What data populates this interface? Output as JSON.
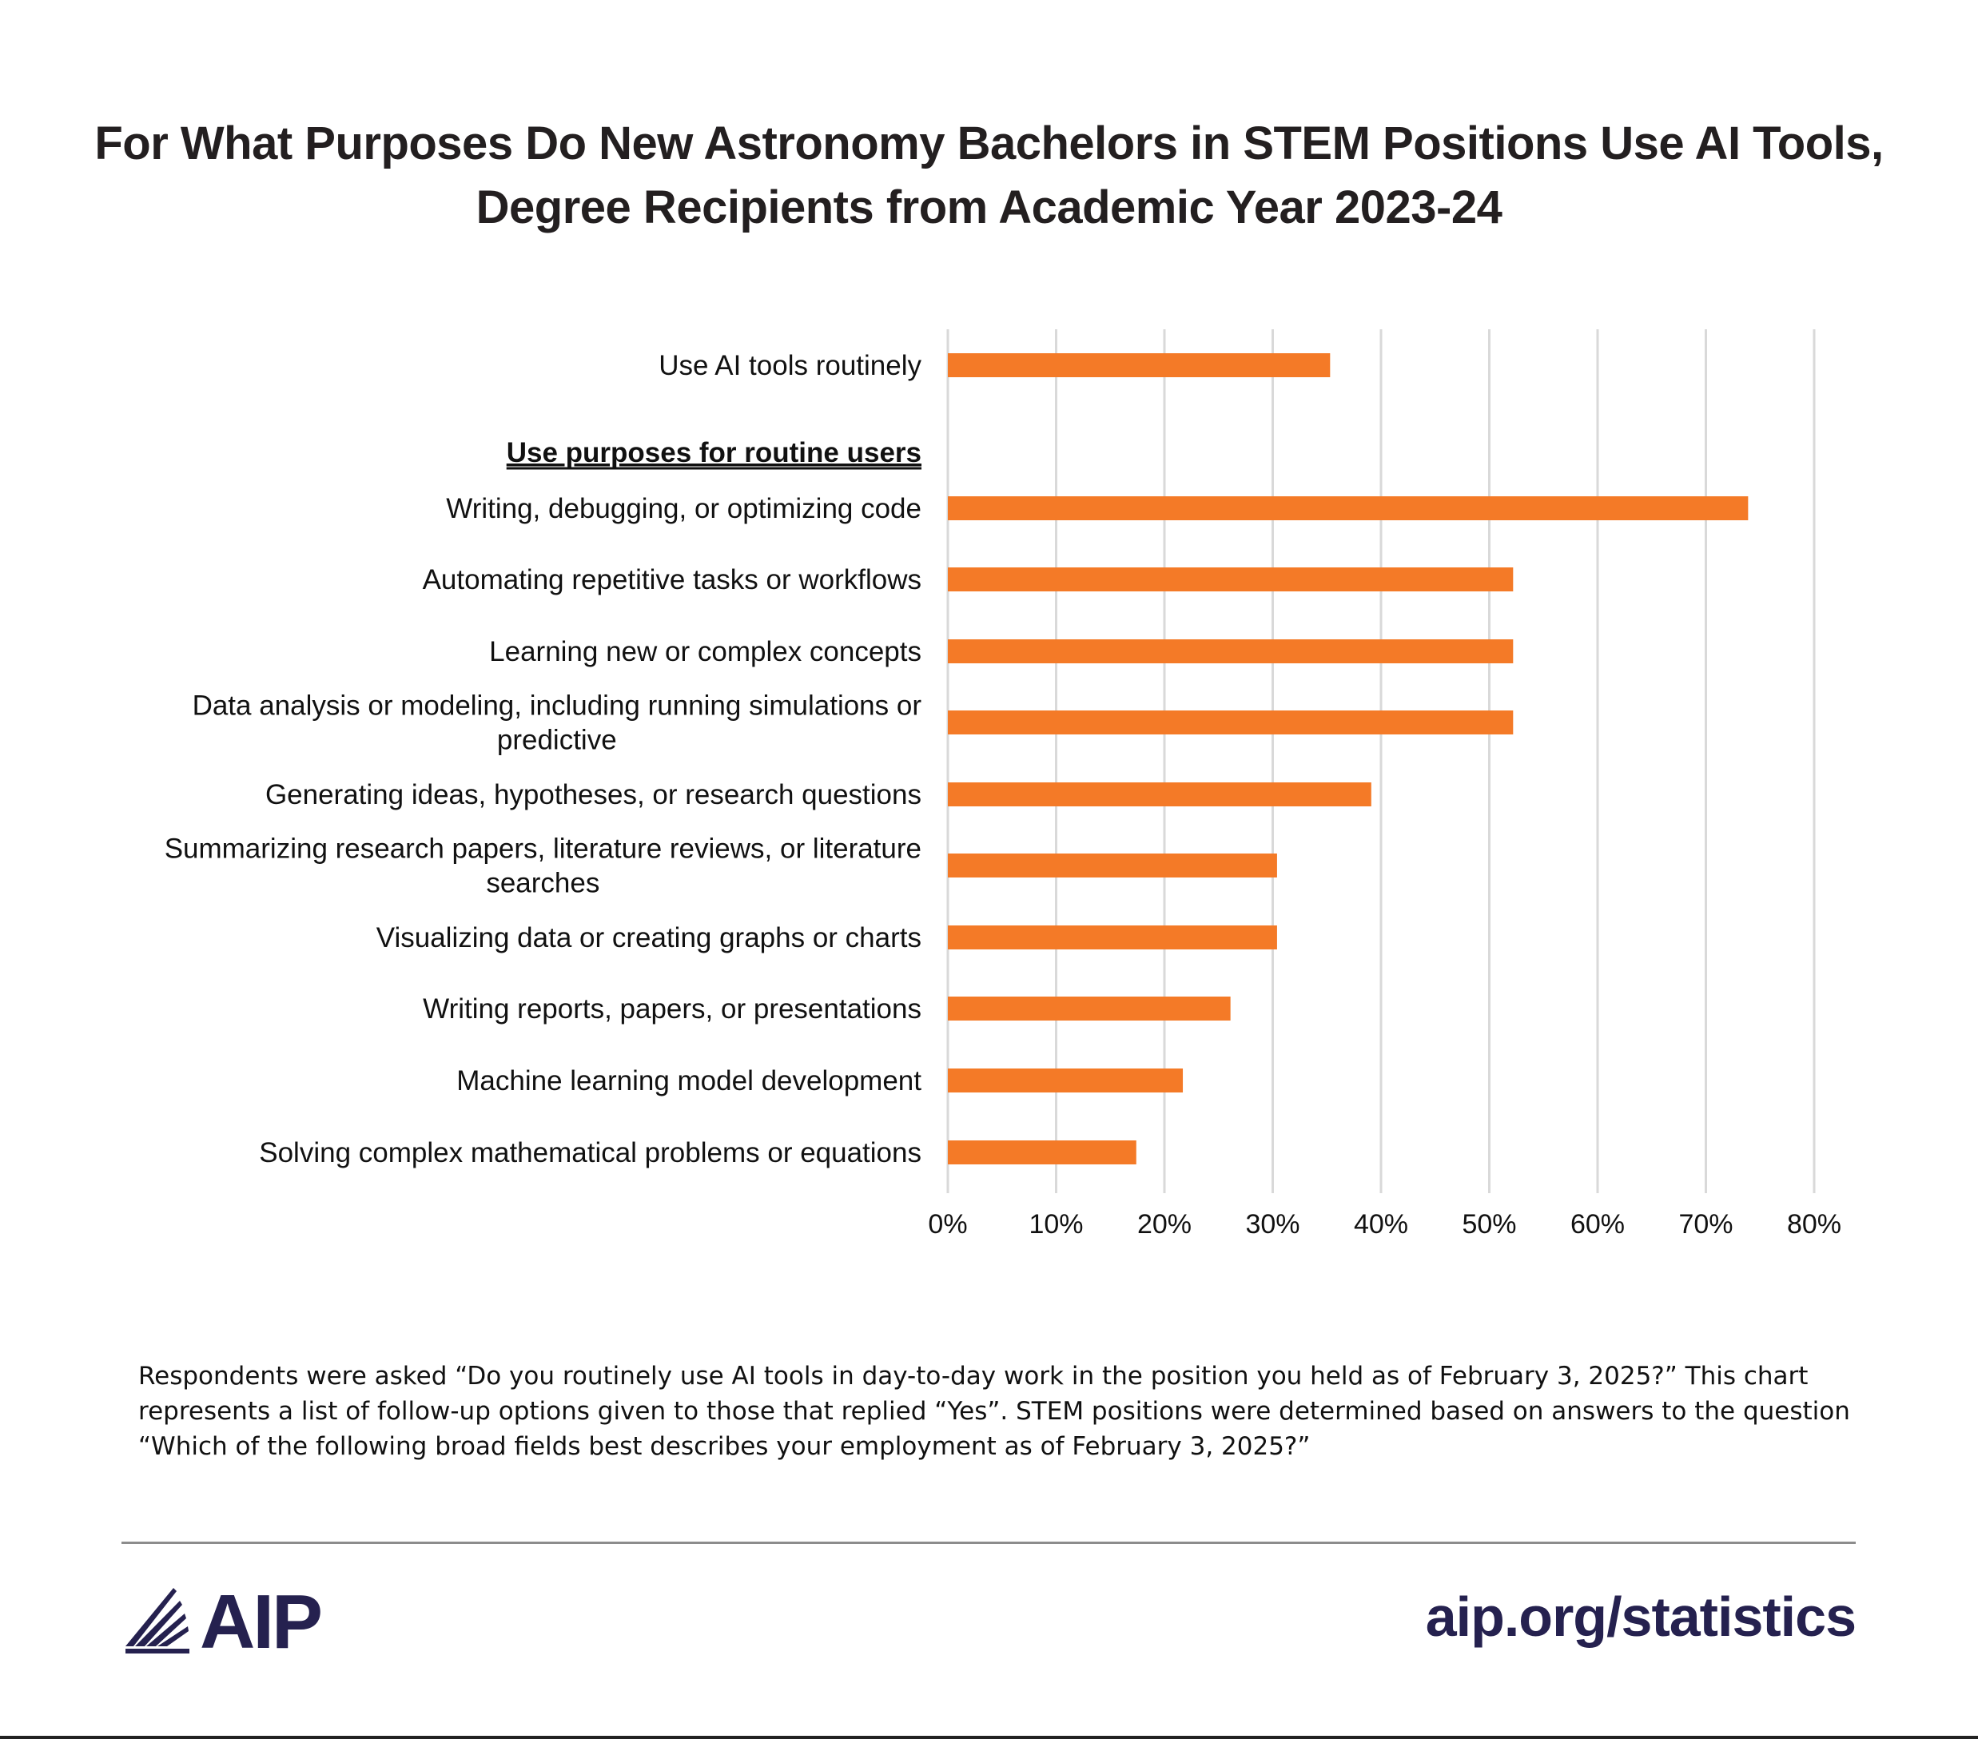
{
  "title_lines": [
    "For What Purposes Do New Astronomy Bachelors in STEM Positions Use AI Tools,",
    "Degree Recipients from Academic Year 2023-24"
  ],
  "chart_data": {
    "type": "bar",
    "orientation": "horizontal",
    "title": "For What Purposes Do New Astronomy Bachelors in STEM Positions Use AI Tools, Degree Recipients from Academic Year 2023-24",
    "section_heading": "Use purposes for routine users",
    "categories": [
      "Use AI tools routinely",
      "Writing, debugging, or optimizing code",
      "Automating repetitive tasks or workflows",
      "Learning new or complex concepts",
      "Data analysis or modeling, including running simulations or predictive",
      "Generating ideas, hypotheses, or research questions",
      "Summarizing research papers, literature reviews, or literature searches",
      "Visualizing data or creating graphs or charts",
      "Writing reports, papers, or presentations",
      "Machine learning model development",
      "Solving complex mathematical problems or equations"
    ],
    "category_label_lines": [
      [
        "Use AI tools routinely"
      ],
      [
        "Writing, debugging, or optimizing code"
      ],
      [
        "Automating repetitive tasks or workflows"
      ],
      [
        "Learning new or complex concepts"
      ],
      [
        "Data analysis or modeling, including running simulations or",
        "predictive"
      ],
      [
        "Generating ideas, hypotheses, or research questions"
      ],
      [
        "Summarizing research papers, literature reviews, or literature",
        "searches"
      ],
      [
        "Visualizing data or creating graphs or charts"
      ],
      [
        "Writing reports, papers, or presentations"
      ],
      [
        "Machine learning model development"
      ],
      [
        "Solving complex mathematical problems or equations"
      ]
    ],
    "values": [
      35.3,
      73.9,
      52.2,
      52.2,
      52.2,
      39.1,
      30.4,
      30.4,
      26.1,
      21.7,
      17.4
    ],
    "xlim": [
      0,
      80
    ],
    "xticks": [
      0,
      10,
      20,
      30,
      40,
      50,
      60,
      70,
      80
    ],
    "xtick_labels": [
      "0%",
      "10%",
      "20%",
      "30%",
      "40%",
      "50%",
      "60%",
      "70%",
      "80%"
    ],
    "grid": "vertical",
    "bar_color": "#f47a27",
    "grid_color": "#d9d9d9"
  },
  "footnote": "Respondents were asked “Do you routinely use AI tools in day-to-day work in the position you held as of February 3, 2025?” This chart represents a list of follow-up options given to those that replied “Yes”. STEM positions were determined based on answers to the question “Which of the following broad fields best describes your employment as of February 3, 2025?”",
  "logo": {
    "icon": "aip-logo-icon",
    "text": "AIP"
  },
  "site": "aip.org/statistics"
}
